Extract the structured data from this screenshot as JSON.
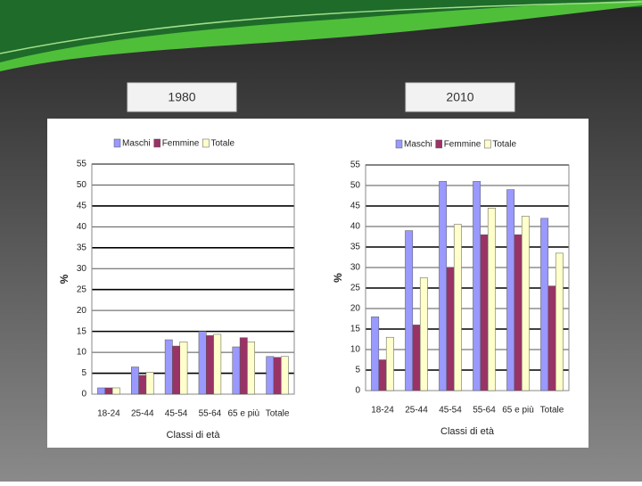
{
  "chart_data": [
    {
      "type": "bar",
      "title": "1980",
      "y_label": "%",
      "x_label": "Classi di età",
      "categories": [
        "18-24",
        "25-44",
        "45-54",
        "55-64",
        "65 e più",
        "Totale"
      ],
      "series": [
        {
          "name": "Maschi",
          "color": "#9999ff",
          "values": [
            1.5,
            6.5,
            13,
            15,
            11.3,
            9
          ]
        },
        {
          "name": "Femmine",
          "color": "#993366",
          "values": [
            1.5,
            4.5,
            11.5,
            14,
            13.5,
            8.8
          ]
        },
        {
          "name": "Totale",
          "color": "#ffffcc",
          "values": [
            1.5,
            5.2,
            12.5,
            14.3,
            12.5,
            9
          ]
        }
      ],
      "ylim": [
        0,
        55
      ],
      "yticks": [
        0,
        5,
        10,
        15,
        20,
        25,
        30,
        35,
        40,
        45,
        50,
        55
      ],
      "grid": true,
      "legend": "top"
    },
    {
      "type": "bar",
      "title": "2010",
      "y_label": "%",
      "x_label": "Classi di età",
      "categories": [
        "18-24",
        "25-44",
        "45-54",
        "55-64",
        "65 e più",
        "Totale"
      ],
      "series": [
        {
          "name": "Maschi",
          "color": "#9999ff",
          "values": [
            18,
            39,
            51,
            51,
            49,
            42
          ]
        },
        {
          "name": "Femmine",
          "color": "#993366",
          "values": [
            7.5,
            16,
            30,
            38,
            38,
            25.5
          ]
        },
        {
          "name": "Totale",
          "color": "#ffffcc",
          "values": [
            13,
            27.5,
            40.5,
            44.5,
            42.5,
            33.5
          ]
        }
      ],
      "ylim": [
        0,
        55
      ],
      "yticks": [
        0,
        5,
        10,
        15,
        20,
        25,
        30,
        35,
        40,
        45,
        50,
        55
      ],
      "grid": true,
      "legend": "top"
    }
  ]
}
